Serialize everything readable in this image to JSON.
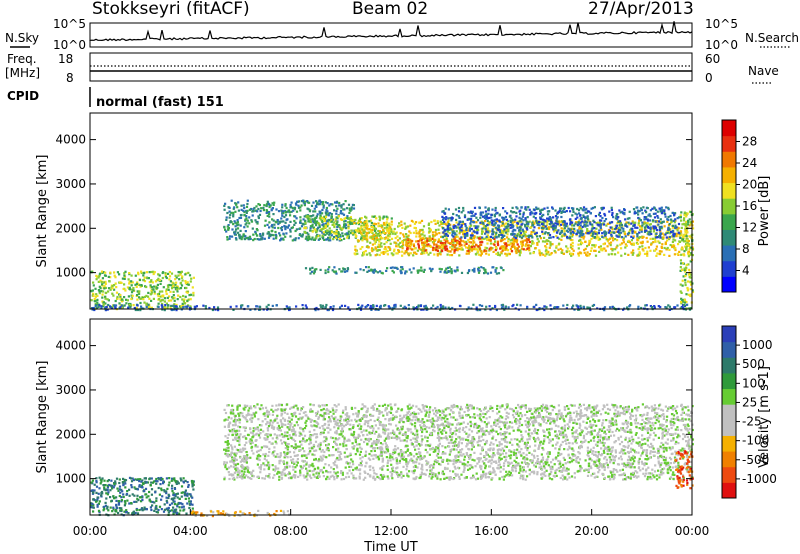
{
  "header": {
    "station": "Stokkseyri (fitACF)",
    "beam": "Beam 02",
    "date": "27/Apr/2013"
  },
  "noise_panel": {
    "left_label": "N.Sky",
    "right_label": "N.Search",
    "left_ticks": [
      "10^5",
      "10^0"
    ],
    "right_ticks": [
      "10^5",
      "10^0"
    ]
  },
  "freq_panel": {
    "left_label_1": "Freq.",
    "left_label_2": "[MHz]",
    "right_label": "Nave",
    "left_ticks": [
      "18",
      "8"
    ],
    "right_ticks": [
      "60",
      "0"
    ]
  },
  "cpid_panel": {
    "label": "CPID",
    "mode_text": "normal (fast) 151"
  },
  "chart_data": [
    {
      "type": "heatmap",
      "parameter": "Power",
      "ylabel": "Slant Range [km]",
      "yticks": [
        "1000",
        "2000",
        "3000",
        "4000"
      ],
      "ylim": [
        180,
        4600
      ],
      "xlim_hours": [
        0,
        24
      ],
      "colorbar": {
        "label": "Power [dB]",
        "ticks": [
          "4",
          "8",
          "12",
          "16",
          "20",
          "24",
          "28"
        ],
        "colors": [
          "#0000ff",
          "#1f3fd0",
          "#2a6fb5",
          "#2f8a76",
          "#3aa64d",
          "#88cc33",
          "#f0e020",
          "#f5b000",
          "#f07800",
          "#e83010",
          "#dd0000"
        ]
      },
      "echo_regions": [
        {
          "t0": 0.0,
          "t1": 4.1,
          "r0": 200,
          "r1": 1050,
          "level": 5
        },
        {
          "t0": 5.3,
          "t1": 10.5,
          "r0": 1750,
          "r1": 2650,
          "level": 3
        },
        {
          "t0": 8.5,
          "t1": 12.0,
          "r0": 1750,
          "r1": 2300,
          "level": 5
        },
        {
          "t0": 10.5,
          "t1": 24.0,
          "r0": 1400,
          "r1": 2200,
          "level": 6
        },
        {
          "t0": 12.5,
          "t1": 17.5,
          "r0": 1500,
          "r1": 1800,
          "level": 8
        },
        {
          "t0": 14.0,
          "t1": 23.5,
          "r0": 1800,
          "r1": 2500,
          "level": 2
        },
        {
          "t0": 8.5,
          "t1": 16.5,
          "r0": 1000,
          "r1": 1150,
          "level": 3
        },
        {
          "t0": 0.0,
          "t1": 24.0,
          "r0": 180,
          "r1": 300,
          "level": 2
        },
        {
          "t0": 23.5,
          "t1": 24.0,
          "r0": 200,
          "r1": 2400,
          "level": 5
        }
      ]
    },
    {
      "type": "heatmap",
      "parameter": "Velocity",
      "ylabel": "Slant Range [km]",
      "yticks": [
        "1000",
        "2000",
        "3000",
        "4000"
      ],
      "ylim": [
        180,
        4600
      ],
      "xlim_hours": [
        0,
        24
      ],
      "xlabel": "Time UT",
      "xticks": [
        "00:00",
        "04:00",
        "08:00",
        "12:00",
        "16:00",
        "20:00",
        "00:00"
      ],
      "colorbar": {
        "label": "Velocity [m s-1]",
        "ticks": [
          "1000",
          "500",
          "100",
          "25",
          "-25",
          "-100",
          "-500",
          "-1000"
        ],
        "colors": [
          "#2b3fb8",
          "#2f5fa8",
          "#2d7a6a",
          "#2f9a3a",
          "#66cc33",
          "#c0c0c0",
          "#c0c0c0",
          "#f5b000",
          "#f08000",
          "#ee4a10",
          "#e01010"
        ]
      },
      "echo_regions": [
        {
          "t0": 0.0,
          "t1": 4.1,
          "r0": 200,
          "r1": 1050,
          "level": 2
        },
        {
          "t0": 5.3,
          "t1": 24.0,
          "r0": 1000,
          "r1": 2700,
          "level": 5
        },
        {
          "t0": 4.0,
          "t1": 8.0,
          "r0": 180,
          "r1": 300,
          "level": 7
        },
        {
          "t0": 23.3,
          "t1": 24.0,
          "r0": 800,
          "r1": 1700,
          "level": 9
        }
      ]
    }
  ]
}
